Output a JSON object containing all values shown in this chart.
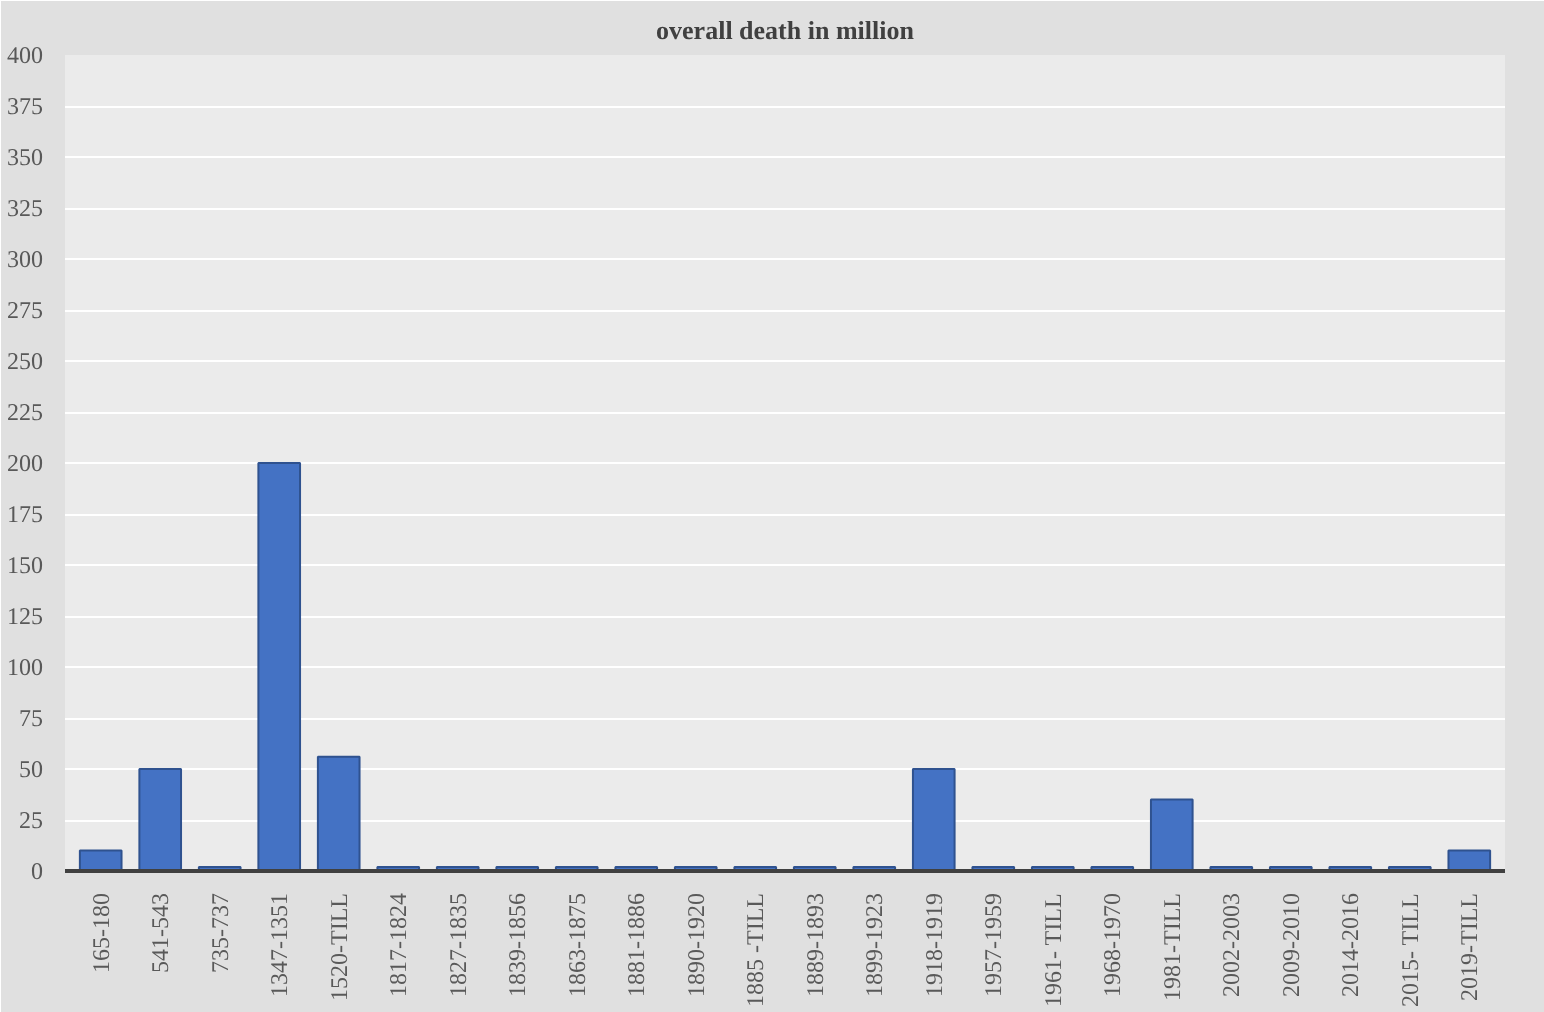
{
  "chart_data": {
    "type": "bar",
    "title": "overall death in million",
    "categories": [
      "165-180",
      "541-543",
      "735-737",
      "1347-1351",
      "1520-TILL",
      "1817-1824",
      "1827-1835",
      "1839-1856",
      "1863-1875",
      "1881-1886",
      "1890-1920",
      "1885 -TILL",
      "1889-1893",
      "1899-1923",
      "1918-1919",
      "1957-1959",
      "1961- TILL",
      "1968-1970",
      "1981-TILL",
      "2002-2003",
      "2009-2010",
      "2014-2016",
      "2015- TILL",
      "2019-TILL"
    ],
    "values": [
      10,
      50,
      2,
      200,
      56,
      2,
      2,
      2,
      2,
      2,
      2,
      2,
      2,
      2,
      50,
      2,
      2,
      2,
      35,
      2,
      2,
      2,
      2,
      10
    ],
    "color": "#4472c4",
    "ylim": [
      0,
      400
    ],
    "yticks": [
      0,
      25,
      50,
      75,
      100,
      125,
      150,
      175,
      200,
      225,
      250,
      275,
      300,
      325,
      350,
      375,
      400
    ],
    "grid": "y"
  }
}
